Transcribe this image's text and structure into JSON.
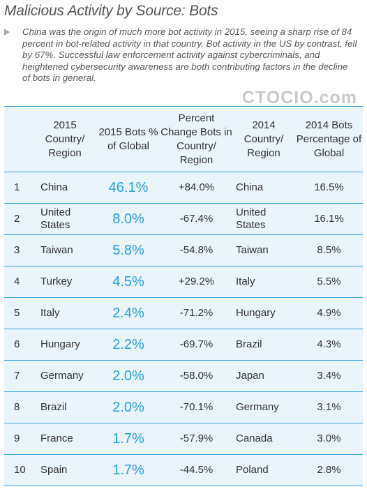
{
  "title": "Malicious Activity by Source: Bots",
  "description": "China was the origin of much more bot activity in 2015, seeing a sharp rise of 84 percent in bot-related activity in that country. Bot activity in the US by contrast, fell by 67%. Successful law enforcement activity against cybercriminals, and heightened cybersecurity awareness are both contributing factors in the decline of bots in general.",
  "watermark": "CTOCIO.com",
  "colors": {
    "accent": "#27a2de",
    "rule": "#3ea3dc",
    "table_bg": "#eaf4fb"
  },
  "chart_data": {
    "type": "table",
    "title": "Malicious Activity by Source: Bots",
    "columns": [
      "2015 Country/ Region",
      "2015 Bots % of Global",
      "Percent Change Bots in Country/ Region",
      "2014 Country/ Region",
      "2014 Bots Percentage of Global"
    ],
    "rows": [
      {
        "rank": "1",
        "country_2015": "China",
        "pct_2015": "46.1%",
        "change": "+84.0%",
        "country_2014": "China",
        "pct_2014": "16.5%"
      },
      {
        "rank": "2",
        "country_2015": "United States",
        "pct_2015": "8.0%",
        "change": "-67.4%",
        "country_2014": "United States",
        "pct_2014": "16.1%"
      },
      {
        "rank": "3",
        "country_2015": "Taiwan",
        "pct_2015": "5.8%",
        "change": "-54.8%",
        "country_2014": "Taiwan",
        "pct_2014": "8.5%"
      },
      {
        "rank": "4",
        "country_2015": "Turkey",
        "pct_2015": "4.5%",
        "change": "+29.2%",
        "country_2014": "Italy",
        "pct_2014": "5.5%"
      },
      {
        "rank": "5",
        "country_2015": "Italy",
        "pct_2015": "2.4%",
        "change": "-71.2%",
        "country_2014": "Hungary",
        "pct_2014": "4.9%"
      },
      {
        "rank": "6",
        "country_2015": "Hungary",
        "pct_2015": "2.2%",
        "change": "-69.7%",
        "country_2014": "Brazil",
        "pct_2014": "4.3%"
      },
      {
        "rank": "7",
        "country_2015": "Germany",
        "pct_2015": "2.0%",
        "change": "-58.0%",
        "country_2014": "Japan",
        "pct_2014": "3.4%"
      },
      {
        "rank": "8",
        "country_2015": "Brazil",
        "pct_2015": "2.0%",
        "change": "-70.1%",
        "country_2014": "Germany",
        "pct_2014": "3.1%"
      },
      {
        "rank": "9",
        "country_2015": "France",
        "pct_2015": "1.7%",
        "change": "-57.9%",
        "country_2014": "Canada",
        "pct_2014": "3.0%"
      },
      {
        "rank": "10",
        "country_2015": "Spain",
        "pct_2015": "1.7%",
        "change": "-44.5%",
        "country_2014": "Poland",
        "pct_2014": "2.8%"
      }
    ]
  }
}
